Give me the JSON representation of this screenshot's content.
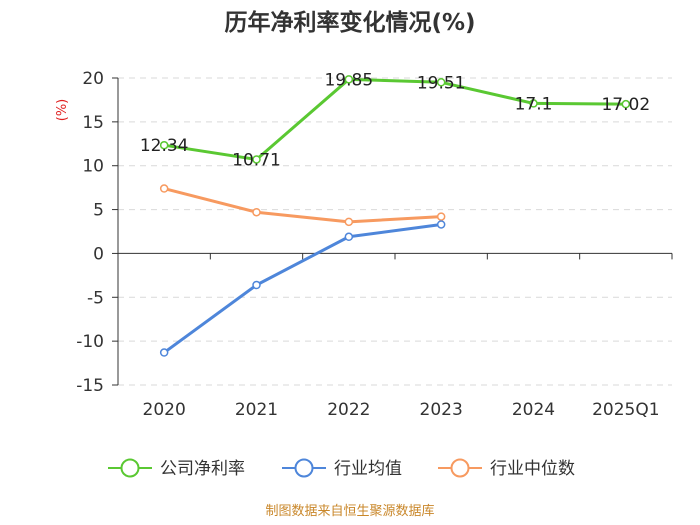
{
  "chart_data": {
    "type": "line",
    "title": "历年净利率变化情况(%)",
    "ylabel": "(%)",
    "xlabel": "",
    "categories": [
      "2020",
      "2021",
      "2022",
      "2023",
      "2024",
      "2025Q1"
    ],
    "ylim": [
      -15,
      20
    ],
    "yticks": [
      20,
      15,
      10,
      5,
      0,
      -5,
      -10,
      -15
    ],
    "grid": true,
    "legend_position": "bottom",
    "series": [
      {
        "name": "公司净利率",
        "color": "#5ac832",
        "values": [
          12.34,
          10.71,
          19.85,
          19.51,
          17.1,
          17.02
        ],
        "labels": [
          "12.34",
          "10.71",
          "19.85",
          "19.51",
          "17.1",
          "17.02"
        ]
      },
      {
        "name": "行业均值",
        "color": "#4e86da",
        "values": [
          -11.3,
          -3.6,
          1.9,
          3.3,
          null,
          null
        ]
      },
      {
        "name": "行业中位数",
        "color": "#f79a60",
        "values": [
          7.4,
          4.7,
          3.6,
          4.2,
          null,
          null
        ]
      }
    ],
    "source": "制图数据来自恒生聚源数据库"
  }
}
